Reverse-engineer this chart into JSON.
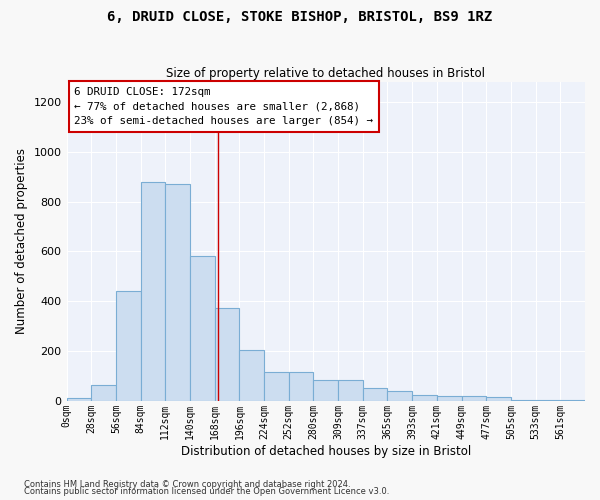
{
  "title1": "6, DRUID CLOSE, STOKE BISHOP, BRISTOL, BS9 1RZ",
  "title2": "Size of property relative to detached houses in Bristol",
  "xlabel": "Distribution of detached houses by size in Bristol",
  "ylabel": "Number of detached properties",
  "bar_color": "#ccddf0",
  "bar_edge_color": "#7aadd4",
  "background_color": "#eef2fa",
  "fig_background": "#f8f8f8",
  "grid_color": "#ffffff",
  "bin_labels": [
    "0sqm",
    "28sqm",
    "56sqm",
    "84sqm",
    "112sqm",
    "140sqm",
    "168sqm",
    "196sqm",
    "224sqm",
    "252sqm",
    "280sqm",
    "309sqm",
    "337sqm",
    "365sqm",
    "393sqm",
    "421sqm",
    "449sqm",
    "477sqm",
    "505sqm",
    "533sqm",
    "561sqm"
  ],
  "bar_values": [
    10,
    65,
    440,
    880,
    870,
    580,
    375,
    205,
    115,
    115,
    85,
    85,
    50,
    40,
    25,
    20,
    18,
    15,
    5,
    4,
    3
  ],
  "ylim": [
    0,
    1280
  ],
  "yticks": [
    0,
    200,
    400,
    600,
    800,
    1000,
    1200
  ],
  "vline_x": 172,
  "vline_color": "#cc0000",
  "annotation_box_text": "6 DRUID CLOSE: 172sqm\n← 77% of detached houses are smaller (2,868)\n23% of semi-detached houses are larger (854) →",
  "footer1": "Contains HM Land Registry data © Crown copyright and database right 2024.",
  "footer2": "Contains public sector information licensed under the Open Government Licence v3.0.",
  "bin_width": 28
}
